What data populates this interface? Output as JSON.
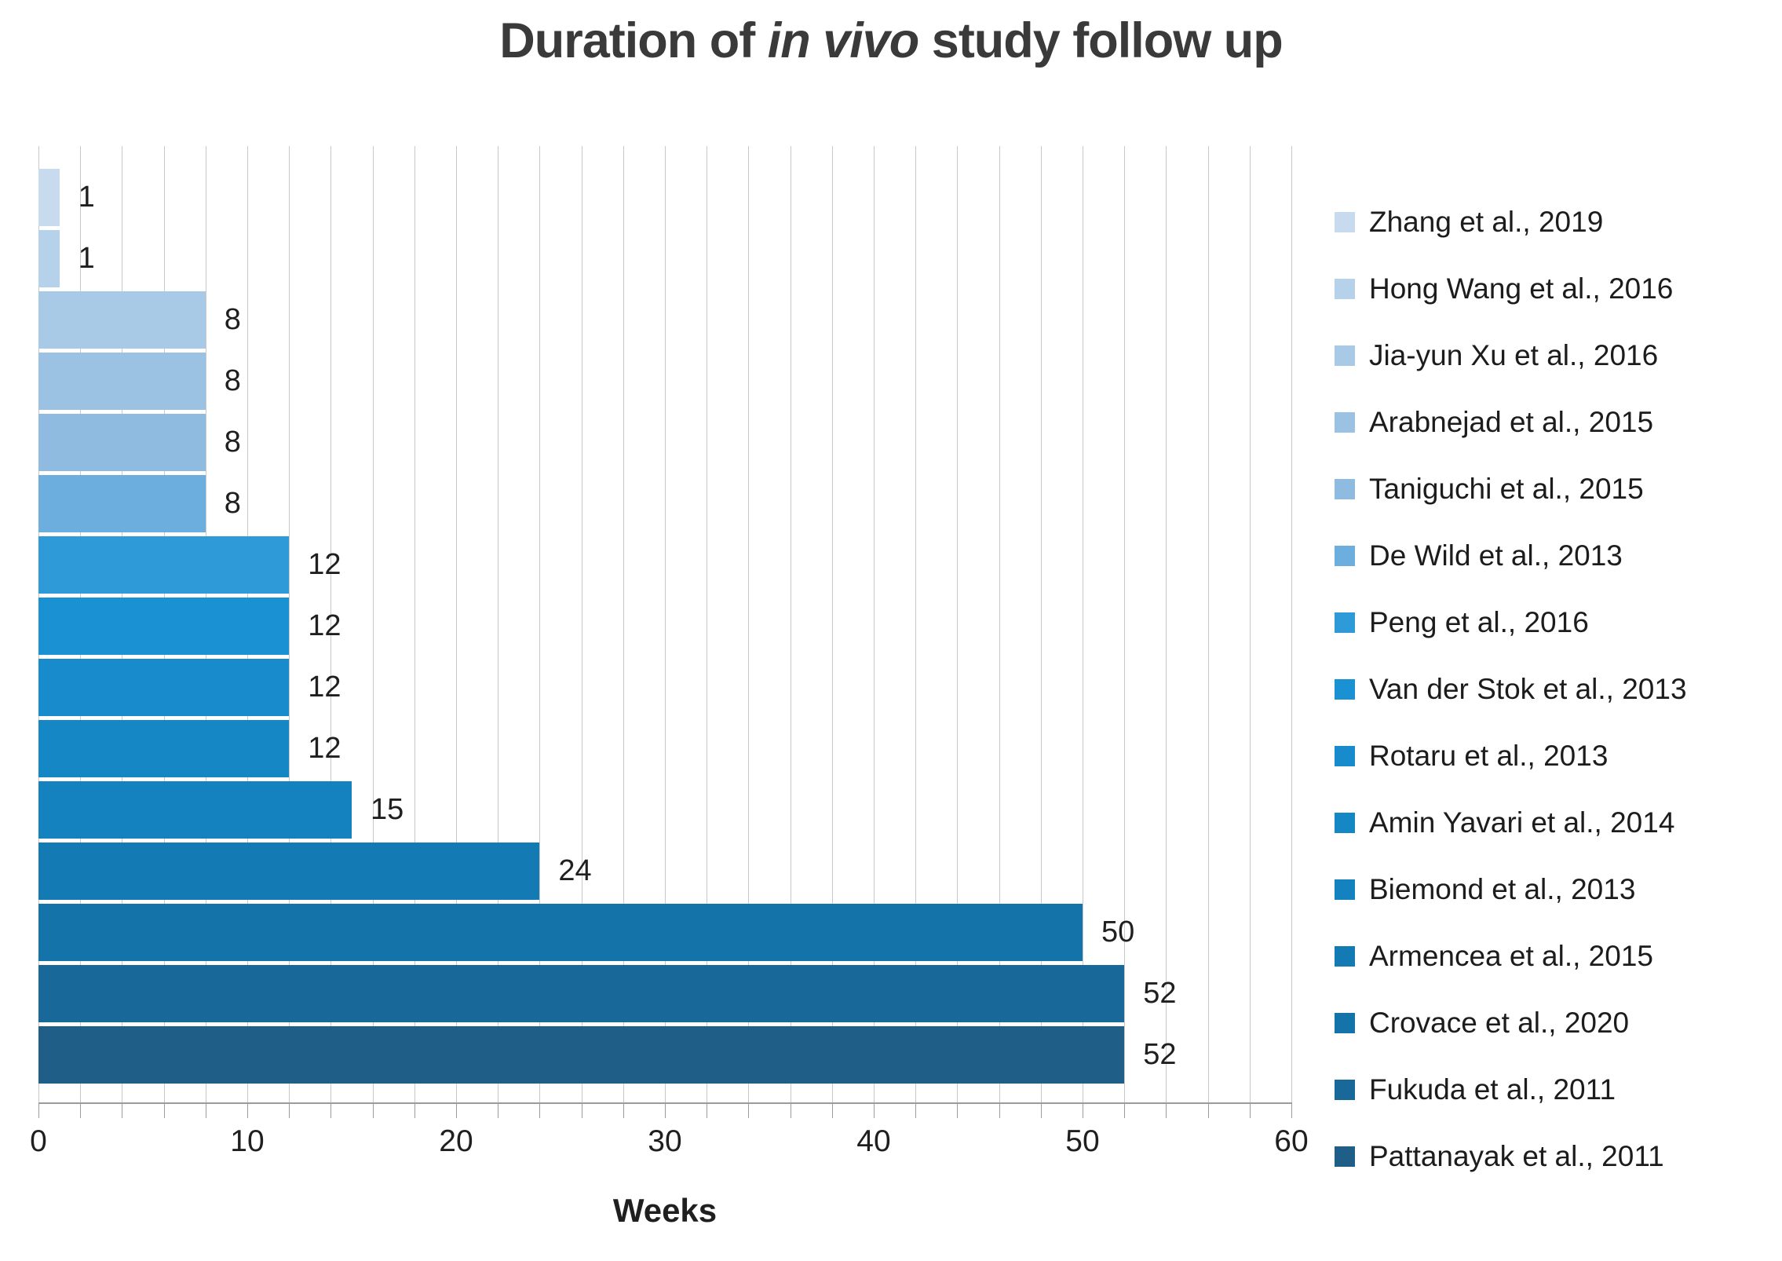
{
  "title": {
    "prefix": "Duration of ",
    "italic": "in vivo",
    "suffix": " study follow up"
  },
  "chart_data": {
    "type": "bar",
    "orientation": "horizontal",
    "title": "Duration of in vivo study follow up",
    "xlabel": "Weeks",
    "ylabel": "",
    "x_min": 0,
    "x_max": 60,
    "x_ticks": [
      0,
      10,
      20,
      30,
      40,
      50,
      60
    ],
    "gridline_step": 2,
    "grid": true,
    "legend_position": "right",
    "categories": [
      "Zhang et al., 2019",
      "Hong Wang et al., 2016",
      "Jia-yun Xu et al., 2016",
      "Arabnejad et al., 2015",
      "Taniguchi et al., 2015",
      "De Wild et al., 2013",
      "Peng et al., 2016",
      "Van der Stok et al., 2013",
      "Rotaru et al., 2013",
      "Amin Yavari et al., 2014",
      "Biemond et al., 2013",
      "Armencea et al., 2015",
      "Crovace et al., 2020",
      "Fukuda et al., 2011",
      "Pattanayak et al., 2011"
    ],
    "values": [
      1,
      1,
      8,
      8,
      8,
      8,
      12,
      12,
      12,
      12,
      15,
      24,
      50,
      52,
      52
    ],
    "bar_colors": [
      "#c8daee",
      "#b6d2ea",
      "#a9cae6",
      "#9cc2e3",
      "#90bbe0",
      "#6caede",
      "#2f9ad8",
      "#1a91d3",
      "#178bcb",
      "#1687c5",
      "#1482bf",
      "#147ab4",
      "#1473a9",
      "#19689a",
      "#1e5e87"
    ],
    "colors": {
      "gridline": "#c9c9c9",
      "axis_line": "#9b9b9b",
      "value_label": "#1f1f1f",
      "title_text": "#3a3a3a",
      "legend_text": "#1c1c1c"
    }
  }
}
